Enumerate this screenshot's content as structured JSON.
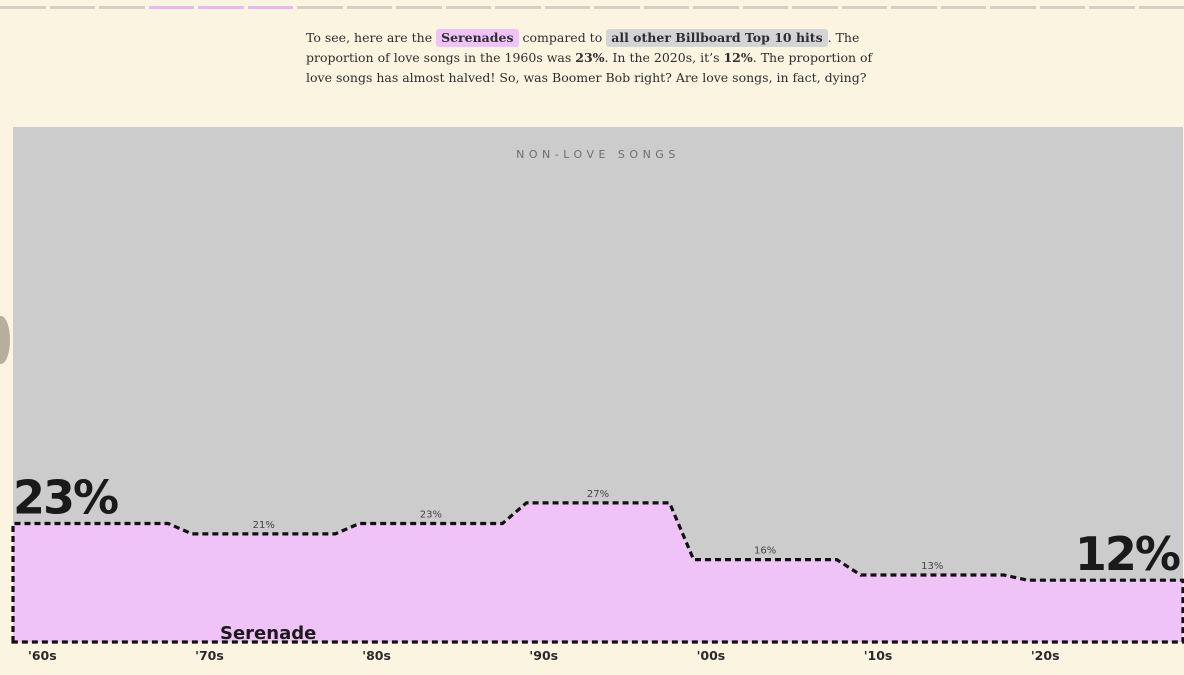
{
  "intro": {
    "pre": "To see, here are the",
    "serenades_tag": "Serenades",
    "mid": "compared to",
    "others_tag": "all other Billboard Top 10 hits",
    "post1": ". The proportion of love songs in the 1960s was",
    "pct_1960s": "23%",
    "post2": ". In the 2020s, it’s",
    "pct_2020s": "12%",
    "post3": ". The proportion of love songs has almost halved! So, was Boomer Bob right? Are love songs, in fact, dying?"
  },
  "chart_data": {
    "type": "area",
    "background_label": "NON-LOVE SONGS",
    "area_label": "Serenade",
    "categories": [
      "'60s",
      "'70s",
      "'80s",
      "'90s",
      "'00s",
      "'10s",
      "'20s"
    ],
    "values": [
      23,
      21,
      23,
      27,
      16,
      13,
      12
    ],
    "value_labels": [
      "23%",
      "21%",
      "23%",
      "27%",
      "16%",
      "13%",
      "12%"
    ],
    "ylim": [
      0,
      100
    ],
    "colors": {
      "love": "#efc3f7",
      "nonlove": "#cccccc",
      "outline": "#111111"
    }
  }
}
